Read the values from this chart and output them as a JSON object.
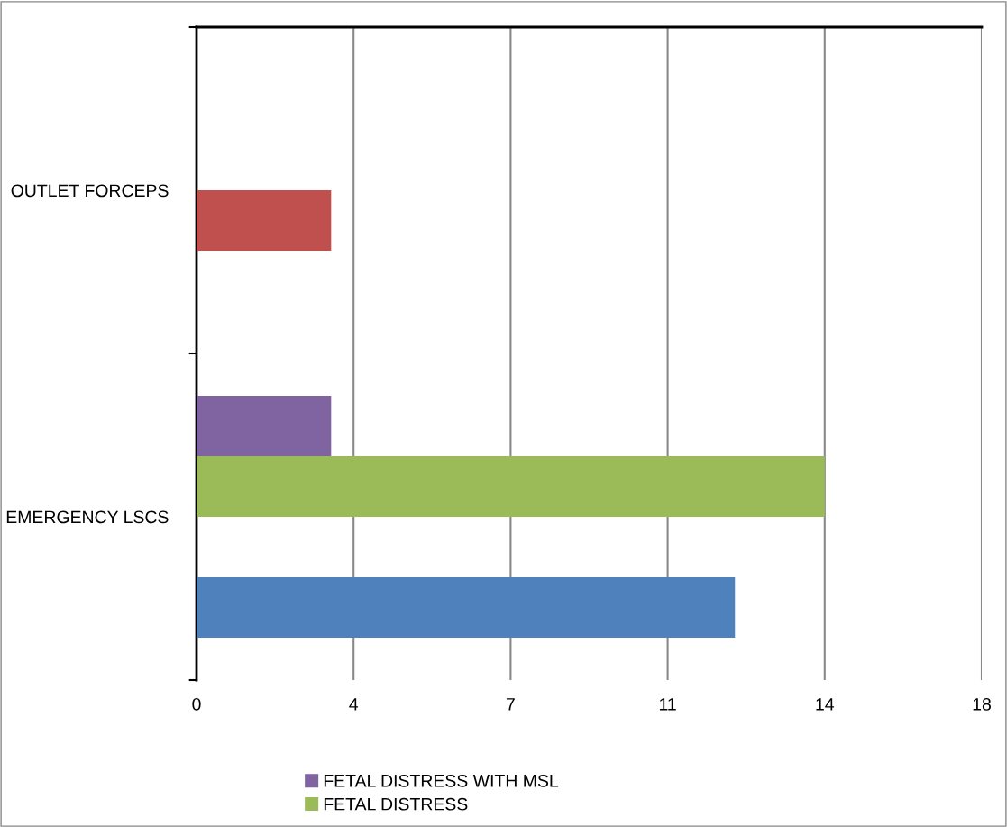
{
  "chart_data": {
    "type": "bar",
    "orientation": "horizontal",
    "categories": [
      "OUTLET FORCEPS",
      "EMERGENCY LSCS"
    ],
    "series": [
      {
        "color": "#4f81bd",
        "values": [
          null,
          12
        ]
      },
      {
        "color": "#c0504d",
        "values": [
          3,
          null
        ]
      },
      {
        "name": "FETAL DISTRESS",
        "color": "#9bbb59",
        "values": [
          null,
          14
        ]
      },
      {
        "name": "FETAL DISTRESS WITH MSL",
        "color": "#8064a2",
        "values": [
          null,
          3
        ]
      }
    ],
    "xlim": [
      0,
      17.5
    ],
    "xticks": [
      0,
      {
        "value": 3.5,
        "label": "4"
      },
      7,
      {
        "value": 10.5,
        "label": "11"
      },
      14,
      {
        "value": 17.5,
        "label": "18"
      }
    ],
    "grid": "x",
    "legend": "bottom"
  }
}
